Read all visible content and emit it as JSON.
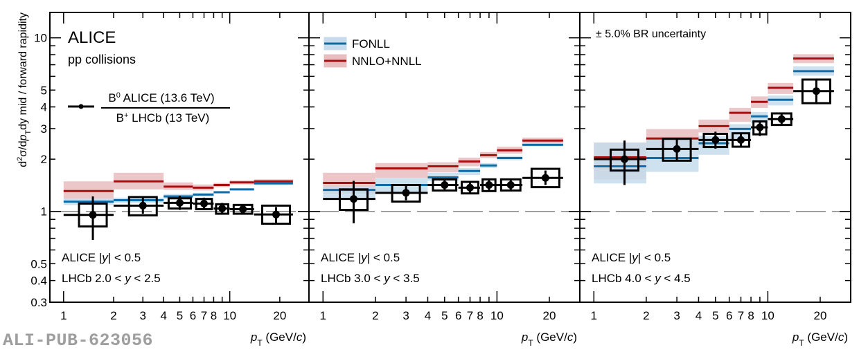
{
  "chart_data": {
    "type": "bar",
    "subtype": "multi-panel ratio plot with step-line model bands and data points with error bars",
    "ylabel": "d²σ/dp_T dy mid / forward rapidity",
    "ylabel_parts": {
      "pre": "d",
      "sup": "2",
      "mid": "σ/d",
      "p": "p",
      "sub": "T",
      "post": "dy mid / forward rapidity"
    },
    "xlabel": "p_T (GeV/c)",
    "xlabel_parts": {
      "p": "p",
      "sub": "T",
      "unit_pre": "(GeV/",
      "c": "c",
      "unit_post": ")"
    },
    "xscale": "log",
    "yscale": "log",
    "xlim": [
      0.91,
      29.4
    ],
    "ylim": [
      0.3,
      14
    ],
    "x_ticks": [
      1,
      2,
      3,
      4,
      5,
      6,
      7,
      8,
      10,
      20
    ],
    "x_tick_labels": [
      "1",
      "2",
      "3",
      "4",
      "5",
      "6",
      "7",
      "8",
      "10",
      "20"
    ],
    "y_ticks": [
      0.3,
      0.4,
      0.5,
      1,
      2,
      3,
      4,
      5,
      10
    ],
    "y_tick_labels": [
      "0.3",
      "0.4",
      "0.5",
      "1",
      "2",
      "3",
      "4",
      "5",
      "10"
    ],
    "reference_line": 1,
    "colors": {
      "data": "#000000",
      "fonll": "#0f6ba6",
      "fonll_band": "#c6dcec",
      "nnlo": "#a50f0f",
      "nnlo_band": "#e7bdbf",
      "ref_line": "#888888"
    },
    "labels": {
      "alice": "ALICE",
      "collisions": "pp collisions",
      "ratio_num_sym": "B",
      "ratio_num_sup": "0",
      "ratio_num_rest": " ALICE (13.6 TeV)",
      "ratio_den_sym": "B",
      "ratio_den_sup": "+",
      "ratio_den_rest": " LHCb (13 TeV)",
      "br_uncertainty": "± 5.0% BR uncertainty"
    },
    "legend": [
      {
        "name": "FONLL",
        "key": "fonll"
      },
      {
        "name": "NNLO+NNLL",
        "key": "nnlo"
      }
    ],
    "bins": [
      [
        1,
        2
      ],
      [
        2,
        4
      ],
      [
        4,
        6
      ],
      [
        6,
        8
      ],
      [
        8,
        10
      ],
      [
        10,
        14
      ],
      [
        14,
        24
      ]
    ],
    "panels": [
      {
        "alice_rap": "ALICE |y| < 0.5",
        "alice_rap_parts": [
          "ALICE |",
          "y",
          "| < 0.5"
        ],
        "lhcb_rap": "LHCb 2.0 < y < 2.5",
        "lhcb_rap_parts": [
          "LHCb 2.0 < ",
          "y",
          " < 2.5"
        ],
        "data": {
          "x": [
            1.5,
            3,
            5,
            7,
            9,
            12,
            19
          ],
          "y": [
            0.955,
            1.08,
            1.12,
            1.11,
            1.04,
            1.03,
            0.96
          ],
          "stat_lo": [
            0.685,
            0.97,
            1.02,
            1.02,
            0.96,
            0.97,
            0.86
          ],
          "stat_hi": [
            1.22,
            1.2,
            1.23,
            1.2,
            1.12,
            1.09,
            1.06
          ],
          "syst_lo": [
            0.82,
            0.95,
            1.04,
            1.03,
            0.97,
            0.97,
            0.85
          ],
          "syst_hi": [
            1.11,
            1.21,
            1.19,
            1.18,
            1.1,
            1.09,
            1.08
          ]
        },
        "fonll": {
          "y": [
            1.14,
            1.16,
            1.22,
            1.25,
            1.29,
            1.34,
            1.45
          ],
          "lo": [
            1.09,
            1.12,
            1.18,
            1.22,
            1.27,
            1.32,
            1.43
          ],
          "hi": [
            1.19,
            1.2,
            1.26,
            1.28,
            1.31,
            1.36,
            1.47
          ]
        },
        "nnlo": {
          "y": [
            1.31,
            1.49,
            1.39,
            1.37,
            1.42,
            1.47,
            1.49
          ],
          "lo": [
            1.18,
            1.34,
            1.33,
            1.32,
            1.38,
            1.43,
            1.46
          ],
          "hi": [
            1.49,
            1.67,
            1.47,
            1.43,
            1.46,
            1.51,
            1.53
          ]
        }
      },
      {
        "alice_rap": "ALICE |y| < 0.5",
        "alice_rap_parts": [
          "ALICE |",
          "y",
          "| < 0.5"
        ],
        "lhcb_rap": "LHCb 3.0 < y < 3.5",
        "lhcb_rap_parts": [
          "LHCb 3.0 < ",
          "y",
          " < 3.5"
        ],
        "data": {
          "x": [
            1.5,
            3,
            5,
            7,
            9,
            12,
            19
          ],
          "y": [
            1.18,
            1.28,
            1.42,
            1.37,
            1.42,
            1.42,
            1.56
          ],
          "stat_lo": [
            0.855,
            1.16,
            1.32,
            1.27,
            1.31,
            1.33,
            1.42
          ],
          "stat_hi": [
            1.5,
            1.4,
            1.53,
            1.48,
            1.53,
            1.52,
            1.72
          ],
          "syst_lo": [
            1.02,
            1.14,
            1.32,
            1.27,
            1.31,
            1.32,
            1.38
          ],
          "syst_hi": [
            1.34,
            1.42,
            1.53,
            1.48,
            1.53,
            1.53,
            1.76
          ]
        },
        "fonll": {
          "y": [
            1.33,
            1.42,
            1.57,
            1.71,
            1.84,
            2.03,
            2.42
          ],
          "lo": [
            1.2,
            1.29,
            1.5,
            1.62,
            1.78,
            1.97,
            2.37
          ],
          "hi": [
            1.39,
            1.56,
            1.67,
            1.78,
            1.9,
            2.09,
            2.47
          ]
        },
        "nnlo": {
          "y": [
            1.46,
            1.77,
            1.82,
            1.94,
            2.11,
            2.25,
            2.56
          ],
          "lo": [
            1.26,
            1.56,
            1.68,
            1.82,
            2.03,
            2.15,
            2.47
          ],
          "hi": [
            1.67,
            1.9,
            1.92,
            2.04,
            2.2,
            2.36,
            2.66
          ]
        }
      },
      {
        "alice_rap": "ALICE |y| < 0.5",
        "alice_rap_parts": [
          "ALICE |",
          "y",
          "| < 0.5"
        ],
        "lhcb_rap": "LHCb 4.0 < y < 4.5",
        "lhcb_rap_parts": [
          "LHCb 4.0 < ",
          "y",
          " < 4.5"
        ],
        "data": {
          "x": [
            1.5,
            3,
            5,
            7,
            9,
            12,
            19
          ],
          "y": [
            2.0,
            2.29,
            2.58,
            2.58,
            3.05,
            3.4,
            4.93
          ],
          "stat_lo": [
            1.42,
            1.98,
            2.3,
            2.33,
            2.72,
            3.12,
            4.15
          ],
          "stat_hi": [
            2.56,
            2.62,
            2.88,
            2.84,
            3.34,
            3.71,
            5.7
          ],
          "syst_lo": [
            1.72,
            1.96,
            2.35,
            2.36,
            2.78,
            3.15,
            4.2
          ],
          "syst_hi": [
            2.27,
            2.62,
            2.8,
            2.82,
            3.3,
            3.67,
            5.75
          ]
        },
        "fonll": {
          "y": [
            1.82,
            2.03,
            2.47,
            2.99,
            3.53,
            4.4,
            6.43
          ],
          "lo": [
            1.45,
            1.69,
            2.12,
            2.62,
            3.22,
            4.08,
            6.05
          ],
          "hi": [
            2.49,
            2.6,
            2.73,
            3.18,
            3.74,
            4.65,
            6.85
          ]
        },
        "nnlo": {
          "y": [
            2.05,
            2.63,
            3.1,
            3.7,
            4.28,
            5.15,
            7.6
          ],
          "lo": [
            1.53,
            2.35,
            2.85,
            3.28,
            3.95,
            4.75,
            7.15
          ],
          "hi": [
            2.49,
            2.98,
            3.38,
            3.95,
            4.6,
            5.5,
            8.05
          ]
        }
      }
    ]
  },
  "watermark": "ALI-PUB-623056"
}
